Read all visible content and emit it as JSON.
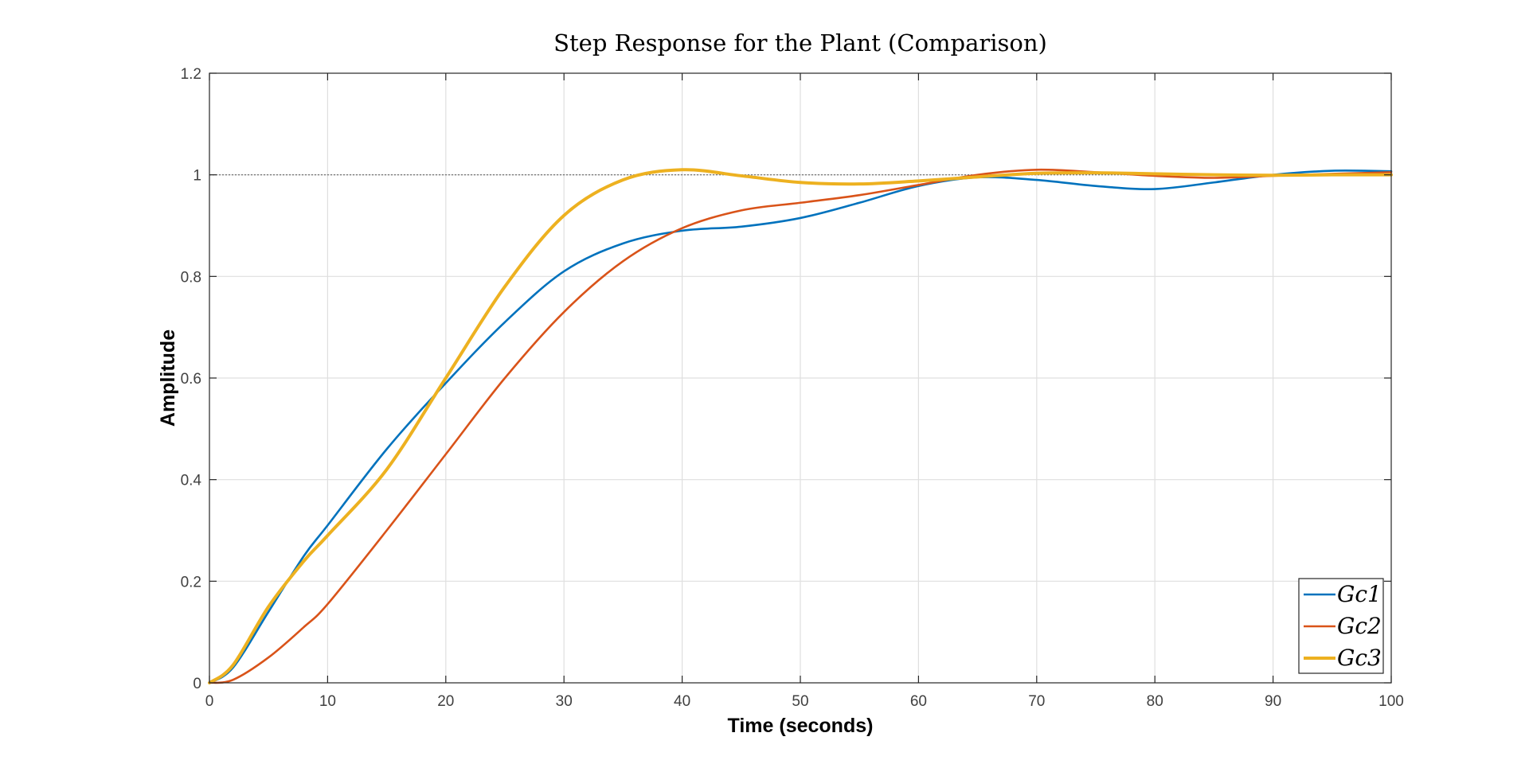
{
  "chart_data": {
    "type": "line",
    "title": "Step Response for the Plant (Comparison)",
    "xlabel": "Time (seconds)",
    "ylabel": "Amplitude",
    "xlim": [
      0,
      100
    ],
    "ylim": [
      0,
      1.2
    ],
    "xticks": [
      0,
      10,
      20,
      30,
      40,
      50,
      60,
      70,
      80,
      90,
      100
    ],
    "yticks": [
      0,
      0.2,
      0.4,
      0.6,
      0.8,
      1,
      1.2
    ],
    "xtick_labels": [
      "0",
      "10",
      "20",
      "30",
      "40",
      "50",
      "60",
      "70",
      "80",
      "90",
      "100"
    ],
    "ytick_labels": [
      "0",
      "0.2",
      "0.4",
      "0.6",
      "0.8",
      "1",
      "1.2"
    ],
    "grid": true,
    "legend_position": "bottom-right",
    "reference_line": {
      "y": 1,
      "style": "dotted",
      "color": "#666666"
    },
    "series": [
      {
        "name": "Gc1",
        "color": "#0072BD",
        "x": [
          0,
          2,
          5,
          8,
          10,
          15,
          20,
          25,
          30,
          35,
          40,
          45,
          50,
          55,
          60,
          65,
          70,
          75,
          80,
          85,
          90,
          95,
          100
        ],
        "y": [
          0,
          0.03,
          0.14,
          0.25,
          0.31,
          0.46,
          0.59,
          0.71,
          0.81,
          0.865,
          0.89,
          0.898,
          0.915,
          0.945,
          0.978,
          0.995,
          0.99,
          0.978,
          0.972,
          0.985,
          1.0,
          1.008,
          1.007
        ]
      },
      {
        "name": "Gc2",
        "color": "#D95319",
        "x": [
          0,
          2,
          5,
          8,
          10,
          15,
          20,
          25,
          30,
          35,
          40,
          45,
          50,
          55,
          60,
          65,
          70,
          75,
          80,
          85,
          90,
          95,
          100
        ],
        "y": [
          0,
          0.006,
          0.05,
          0.11,
          0.155,
          0.3,
          0.45,
          0.6,
          0.73,
          0.83,
          0.895,
          0.93,
          0.945,
          0.96,
          0.98,
          1.0,
          1.01,
          1.005,
          0.998,
          0.994,
          0.998,
          1.002,
          1.005
        ]
      },
      {
        "name": "Gc3",
        "color": "#EDB120",
        "x": [
          0,
          2,
          5,
          8,
          10,
          15,
          20,
          25,
          30,
          35,
          40,
          45,
          50,
          55,
          60,
          65,
          70,
          75,
          80,
          85,
          90,
          95,
          100
        ],
        "y": [
          0,
          0.035,
          0.15,
          0.24,
          0.29,
          0.42,
          0.6,
          0.78,
          0.92,
          0.99,
          1.01,
          0.998,
          0.985,
          0.982,
          0.988,
          0.996,
          1.003,
          1.004,
          1.002,
          1.0,
          0.999,
          1.0,
          1.0
        ]
      }
    ]
  }
}
